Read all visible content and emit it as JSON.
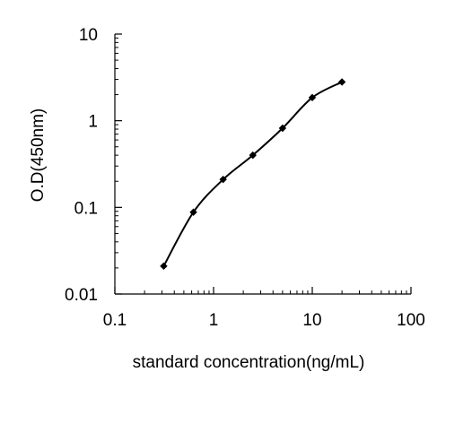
{
  "chart_data": {
    "type": "line",
    "title": "",
    "xlabel": "standard concentration(ng/mL)",
    "ylabel": "O.D(450nm)",
    "xscale": "log",
    "yscale": "log",
    "xlim": [
      0.1,
      100
    ],
    "ylim": [
      0.01,
      10
    ],
    "x_ticks": [
      "0.1",
      "1",
      "10",
      "100"
    ],
    "y_ticks": [
      "0.01",
      "0.1",
      "1",
      "10"
    ],
    "grid": false,
    "legend": "none",
    "line_color": "#000000",
    "marker": "diamond",
    "series": [
      {
        "x": [
          0.3125,
          0.625,
          1.25,
          2.5,
          5,
          10,
          20
        ],
        "y": [
          0.021,
          0.088,
          0.21,
          0.4,
          0.82,
          1.85,
          2.8
        ]
      }
    ]
  }
}
